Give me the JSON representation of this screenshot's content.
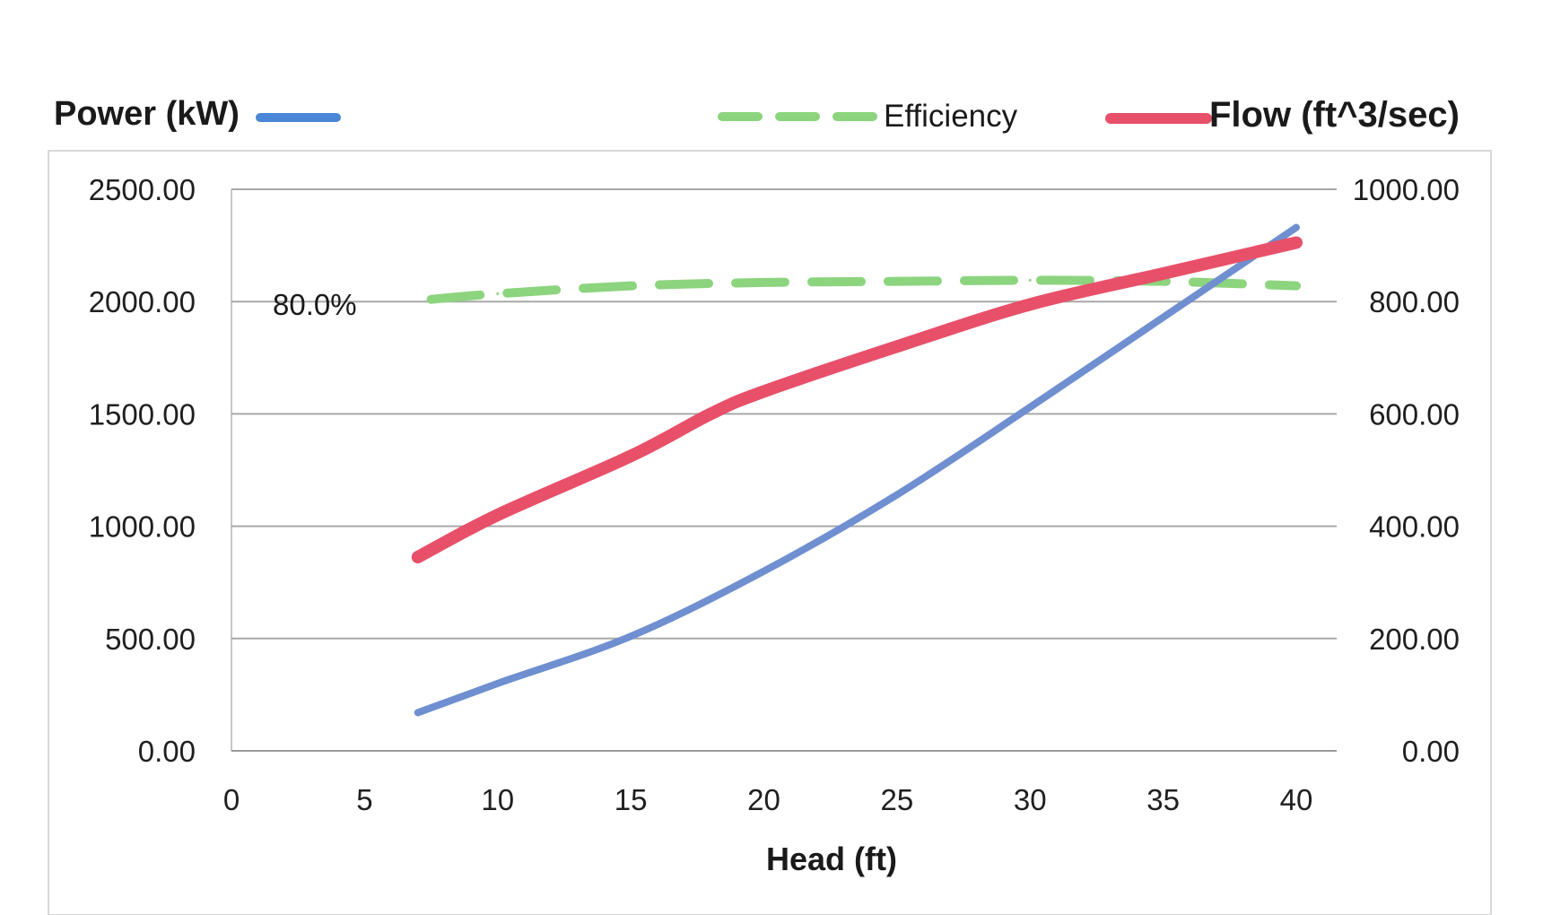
{
  "chart_data": {
    "type": "line",
    "xlabel": "Head (ft)",
    "left_axis_label": "Power (kW)",
    "right_axis_label": "Flow (ft^3/sec)",
    "xlim": [
      0,
      40
    ],
    "x_ticks": [
      0,
      5,
      10,
      15,
      20,
      25,
      30,
      35,
      40
    ],
    "ylim_left": [
      0,
      2500
    ],
    "y_ticks_left": [
      "0.00",
      "500.00",
      "1000.00",
      "1500.00",
      "2000.00",
      "2500.00"
    ],
    "ylim_right": [
      0,
      1000
    ],
    "y_ticks_right": [
      "0.00",
      "200.00",
      "400.00",
      "600.00",
      "800.00",
      "1000.00"
    ],
    "grid": "horizontal",
    "legend_position": "top",
    "annotation": "80.0%",
    "series": [
      {
        "name": "Power (kW)",
        "axis": "left",
        "style": "solid",
        "color": "#6f8fd0",
        "x": [
          7,
          10,
          15,
          20,
          25,
          30,
          35,
          40
        ],
        "y": [
          170,
          300,
          510,
          800,
          1140,
          1530,
          1930,
          2330
        ]
      },
      {
        "name": "Efficiency",
        "axis": "left",
        "style": "dashed",
        "color": "#8cd47e",
        "x": [
          7.5,
          10,
          15,
          20,
          25,
          30,
          35,
          40
        ],
        "y": [
          2010,
          2035,
          2070,
          2085,
          2090,
          2095,
          2090,
          2070
        ]
      },
      {
        "name": "Flow (ft^3/sec)",
        "axis": "right",
        "style": "solid",
        "color": "#e8506a",
        "x": [
          7,
          10,
          15,
          18,
          20,
          25,
          30,
          35,
          40
        ],
        "y": [
          345,
          420,
          525,
          600,
          640,
          720,
          795,
          850,
          905
        ]
      }
    ]
  }
}
